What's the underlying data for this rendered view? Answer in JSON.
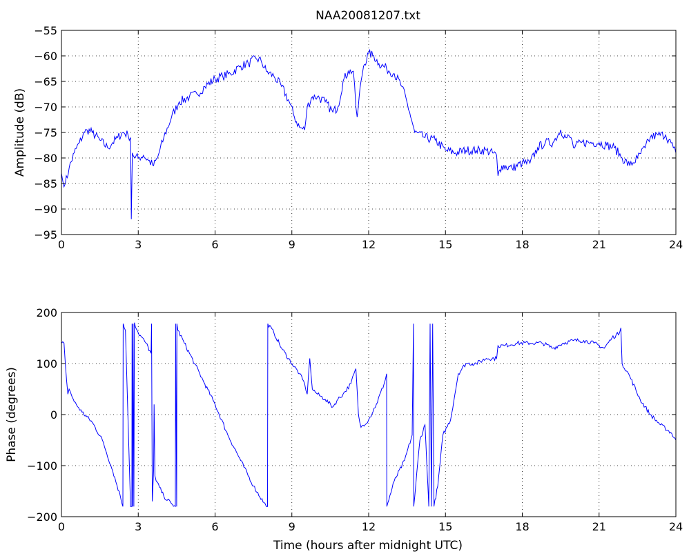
{
  "chart_data": [
    {
      "type": "line",
      "title": "NAA20081207.txt",
      "xlabel": "",
      "ylabel": "Amplitude (dB)",
      "xlim": [
        0,
        24
      ],
      "ylim": [
        -95,
        -55
      ],
      "xticks": [
        0,
        3,
        6,
        9,
        12,
        15,
        18,
        21,
        24
      ],
      "yticks": [
        -95,
        -90,
        -85,
        -80,
        -75,
        -70,
        -65,
        -60,
        -55
      ],
      "xtick_labels": [
        "0",
        "3",
        "6",
        "9",
        "12",
        "15",
        "18",
        "21",
        "24"
      ],
      "ytick_labels": [
        "−95",
        "−90",
        "−85",
        "−80",
        "−75",
        "−70",
        "−65",
        "−60",
        "−55"
      ],
      "grid": true,
      "color": "#0000ff",
      "series": [
        {
          "x": [
            0,
            0.05,
            0.15,
            0.3,
            0.5,
            0.7,
            0.9,
            1.0,
            1.2,
            1.5,
            1.8,
            2.0,
            2.2,
            2.4,
            2.6,
            2.7,
            2.73,
            2.77,
            2.8,
            3.0,
            3.2,
            3.4,
            3.6,
            3.75,
            4.0,
            4.3,
            4.6,
            5.0,
            5.3,
            5.6,
            6.0,
            6.3,
            6.6,
            7.0,
            7.3,
            7.6,
            7.8,
            8.0,
            8.3,
            8.6,
            8.9,
            9.1,
            9.3,
            9.5,
            9.6,
            9.8,
            10.0,
            10.3,
            10.6,
            10.8,
            11.0,
            11.2,
            11.4,
            11.5,
            11.55,
            11.7,
            11.8,
            12.0,
            12.2,
            12.4,
            12.7,
            13.0,
            13.3,
            13.6,
            13.8,
            14.2,
            14.6,
            15.0,
            15.4,
            15.8,
            16.2,
            16.6,
            17.0,
            17.05,
            17.2,
            17.6,
            18.0,
            18.3,
            18.6,
            18.9,
            19.2,
            19.5,
            19.7,
            19.9,
            20.0,
            20.3,
            20.6,
            21.0,
            21.3,
            21.6,
            21.9,
            22.2,
            22.5,
            22.8,
            23.0,
            23.3,
            23.6,
            23.9,
            24.0
          ],
          "y": [
            -83,
            -84.5,
            -85,
            -82,
            -79,
            -77,
            -75,
            -74.5,
            -75,
            -76.5,
            -78,
            -77,
            -76,
            -75,
            -75.5,
            -76,
            -92,
            -79,
            -79.5,
            -80,
            -79.5,
            -80.5,
            -81.5,
            -80,
            -76,
            -72,
            -69,
            -68,
            -67.5,
            -66,
            -64.5,
            -64,
            -63.5,
            -62,
            -61.5,
            -60.5,
            -61,
            -63,
            -64,
            -66,
            -69,
            -72,
            -74,
            -74.5,
            -70,
            -68,
            -68,
            -69,
            -71,
            -70,
            -65,
            -63,
            -63,
            -70,
            -72,
            -65,
            -62,
            -59.5,
            -60,
            -61.5,
            -62.5,
            -63.5,
            -66,
            -71,
            -75,
            -76,
            -76.5,
            -78.5,
            -79,
            -78.5,
            -78.5,
            -78.5,
            -79.5,
            -83.5,
            -81.5,
            -82,
            -81,
            -81,
            -78,
            -77,
            -77,
            -74.5,
            -76,
            -76,
            -78,
            -77,
            -77,
            -77,
            -77.5,
            -78,
            -80,
            -81.5,
            -80,
            -78,
            -76,
            -75.5,
            -75.5,
            -78,
            -79
          ]
        }
      ]
    },
    {
      "type": "line",
      "title": "",
      "xlabel": "Time (hours after midnight UTC)",
      "ylabel": "Phase (degrees)",
      "xlim": [
        0,
        24
      ],
      "ylim": [
        -200,
        200
      ],
      "xticks": [
        0,
        3,
        6,
        9,
        12,
        15,
        18,
        21,
        24
      ],
      "yticks": [
        -200,
        -100,
        0,
        100,
        200
      ],
      "xtick_labels": [
        "0",
        "3",
        "6",
        "9",
        "12",
        "15",
        "18",
        "21",
        "24"
      ],
      "ytick_labels": [
        "−200",
        "−100",
        "0",
        "100",
        "200"
      ],
      "grid": true,
      "color": "#0000ff",
      "series": [
        {
          "x": [
            0,
            0.1,
            0.15,
            0.25,
            0.3,
            0.5,
            0.8,
            1.2,
            1.6,
            2.0,
            2.3,
            2.4,
            2.41,
            2.5,
            2.7,
            2.75,
            2.76,
            2.78,
            2.8,
            2.83,
            2.85,
            3.0,
            3.3,
            3.5,
            3.52,
            3.55,
            3.6,
            3.62,
            3.65,
            3.7,
            4.0,
            4.3,
            4.45,
            4.46,
            4.5,
            4.51,
            4.55,
            4.8,
            5.2,
            5.6,
            6.0,
            6.5,
            7.0,
            7.5,
            8.0,
            8.05,
            8.06,
            8.3,
            8.6,
            9.0,
            9.3,
            9.5,
            9.6,
            9.7,
            9.8,
            10.0,
            10.3,
            10.6,
            10.8,
            11.0,
            11.3,
            11.5,
            11.6,
            11.7,
            12.0,
            12.3,
            12.6,
            12.7,
            12.71,
            13.0,
            13.4,
            13.7,
            13.75,
            13.76,
            13.8,
            14.0,
            14.2,
            14.35,
            14.4,
            14.45,
            14.5,
            14.55,
            14.7,
            14.9,
            15.2,
            15.5,
            15.8,
            16.2,
            16.6,
            17.0,
            17.05,
            17.3,
            17.8,
            18.3,
            18.8,
            19.2,
            19.6,
            20.0,
            20.4,
            20.8,
            21.2,
            21.5,
            21.8,
            21.85,
            21.9,
            22.2,
            22.6,
            23.0,
            23.4,
            23.8,
            24.0
          ],
          "y": [
            140,
            140,
            100,
            40,
            50,
            25,
            5,
            -15,
            -50,
            -110,
            -160,
            -180,
            178,
            165,
            -180,
            -180,
            178,
            -180,
            178,
            -180,
            180,
            160,
            140,
            120,
            178,
            -170,
            -110,
            20,
            -120,
            -130,
            -160,
            -175,
            -180,
            178,
            -180,
            178,
            165,
            140,
            100,
            60,
            20,
            -40,
            -90,
            -140,
            -180,
            -180,
            178,
            160,
            130,
            100,
            80,
            60,
            40,
            110,
            50,
            40,
            30,
            15,
            30,
            40,
            60,
            90,
            0,
            -25,
            -10,
            20,
            60,
            80,
            -180,
            -130,
            -90,
            -40,
            178,
            -180,
            -160,
            -50,
            -20,
            -180,
            178,
            -180,
            178,
            -180,
            -140,
            -40,
            -10,
            80,
            100,
            100,
            110,
            110,
            135,
            135,
            140,
            140,
            140,
            130,
            140,
            145,
            145,
            140,
            130,
            150,
            160,
            170,
            100,
            75,
            30,
            0,
            -20,
            -35,
            -50
          ]
        }
      ]
    }
  ]
}
